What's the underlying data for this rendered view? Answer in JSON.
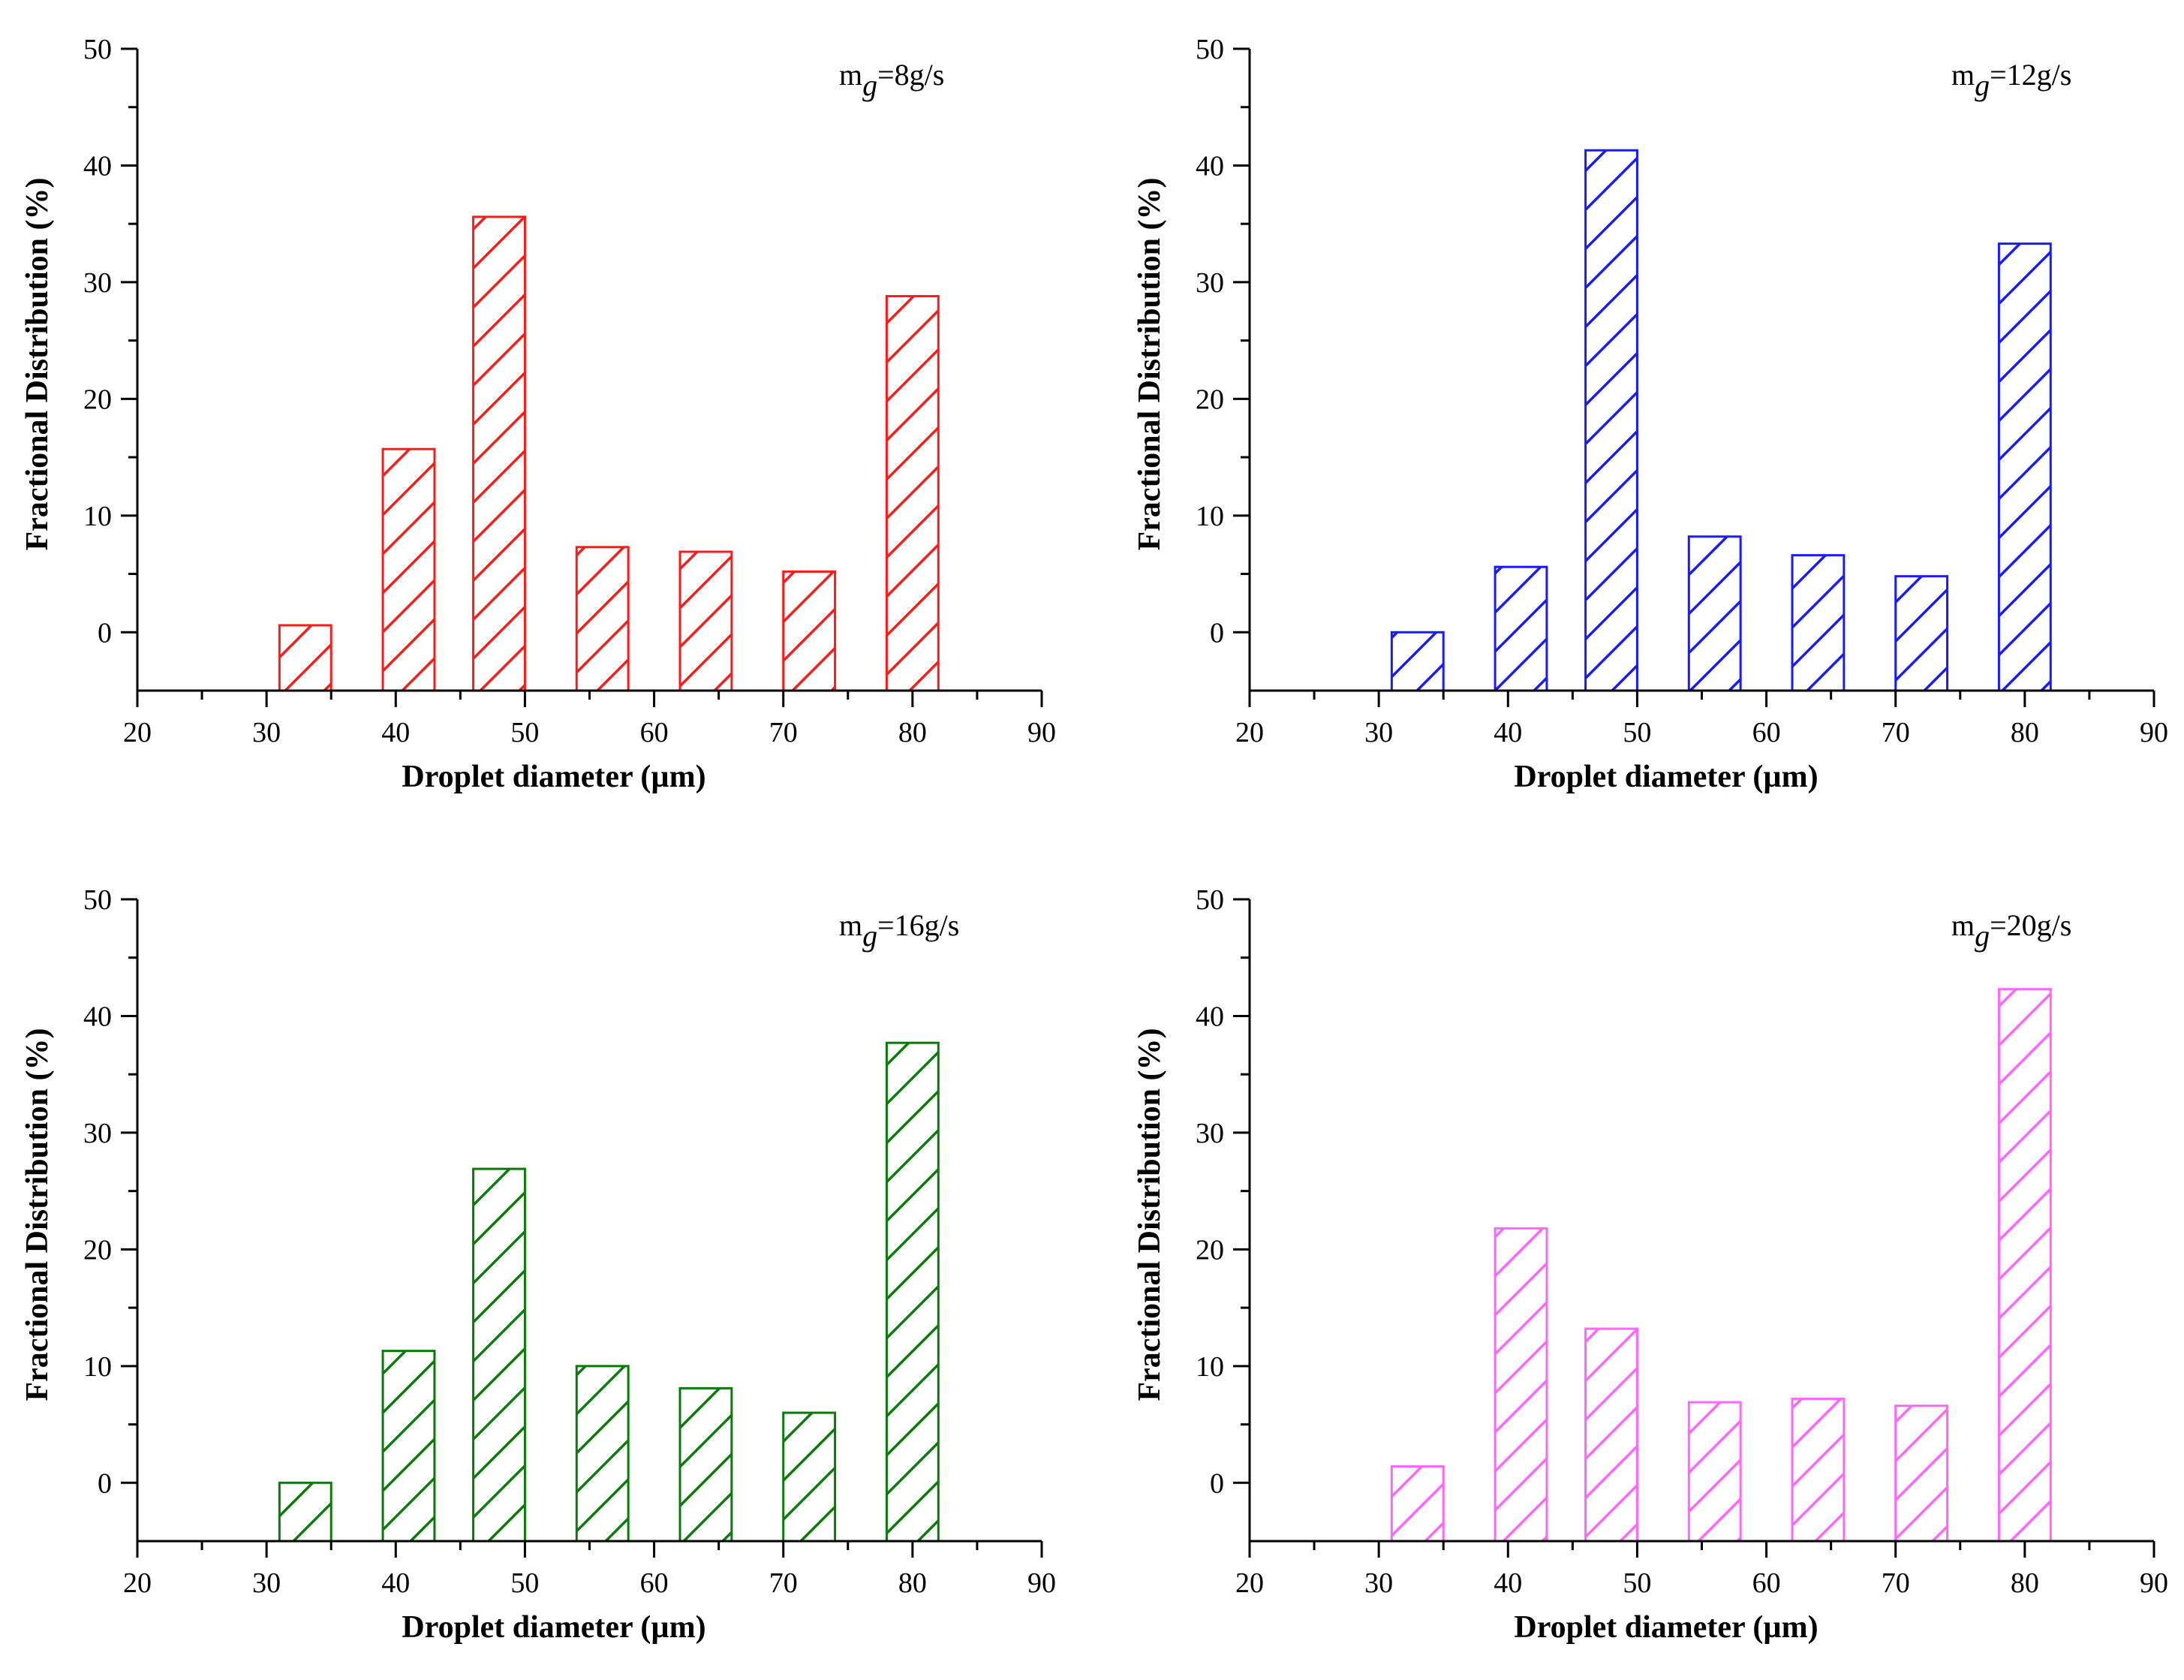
{
  "chart_data": [
    {
      "type": "bar",
      "annotation": {
        "main": "m",
        "sub": "g",
        "rest": "=8g/s"
      },
      "xlabel": "Droplet diameter (µm)",
      "ylabel": "Fractional Distribution (%)",
      "xlim": [
        20,
        90
      ],
      "ylim": [
        -5,
        50
      ],
      "xticks": [
        "20",
        "30",
        "40",
        "50",
        "60",
        "70",
        "80",
        "90"
      ],
      "yticks": [
        "0",
        "10",
        "20",
        "30",
        "40",
        "50"
      ],
      "color": "#ff1a1a",
      "x": [
        33,
        41,
        48,
        56,
        64,
        72,
        80
      ],
      "values": [
        0.6,
        15.7,
        35.6,
        7.3,
        6.9,
        5.2,
        28.8
      ]
    },
    {
      "type": "bar",
      "annotation": {
        "main": "m",
        "sub": "g",
        "rest": "=12g/s"
      },
      "xlabel": "Droplet diameter (µm)",
      "ylabel": "Fractional Distribution (%)",
      "xlim": [
        20,
        90
      ],
      "ylim": [
        -5,
        50
      ],
      "xticks": [
        "20",
        "30",
        "40",
        "50",
        "60",
        "70",
        "80",
        "90"
      ],
      "yticks": [
        "0",
        "10",
        "20",
        "30",
        "40",
        "50"
      ],
      "color": "#1a1aff",
      "x": [
        33,
        41,
        48,
        56,
        64,
        72,
        80
      ],
      "values": [
        0.0,
        5.6,
        41.3,
        8.2,
        6.6,
        4.8,
        33.3
      ]
    },
    {
      "type": "bar",
      "annotation": {
        "main": "m",
        "sub": "g",
        "rest": "=16g/s"
      },
      "xlabel": "Droplet diameter (µm)",
      "ylabel": "Fractional Distribution (%)",
      "xlim": [
        20,
        90
      ],
      "ylim": [
        -5,
        50
      ],
      "xticks": [
        "20",
        "30",
        "40",
        "50",
        "60",
        "70",
        "80",
        "90"
      ],
      "yticks": [
        "0",
        "10",
        "20",
        "30",
        "40",
        "50"
      ],
      "color": "#0b7a0b",
      "x": [
        33,
        41,
        48,
        56,
        64,
        72,
        80
      ],
      "values": [
        0.0,
        11.3,
        26.9,
        10.0,
        8.1,
        6.0,
        37.7
      ]
    },
    {
      "type": "bar",
      "annotation": {
        "main": "m",
        "sub": "g",
        "rest": "=20g/s"
      },
      "xlabel": "Droplet diameter (µm)",
      "ylabel": "Fractional Distribution (%)",
      "xlim": [
        20,
        90
      ],
      "ylim": [
        -5,
        50
      ],
      "xticks": [
        "20",
        "30",
        "40",
        "50",
        "60",
        "70",
        "80",
        "90"
      ],
      "yticks": [
        "0",
        "10",
        "20",
        "30",
        "40",
        "50"
      ],
      "color": "#ff66ff",
      "x": [
        33,
        41,
        48,
        56,
        64,
        72,
        80
      ],
      "values": [
        1.4,
        21.8,
        13.2,
        6.9,
        7.2,
        6.6,
        42.3
      ]
    }
  ]
}
